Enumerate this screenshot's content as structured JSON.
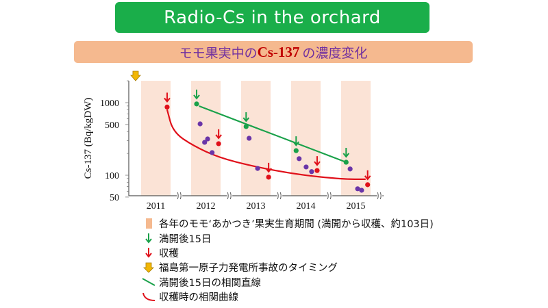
{
  "header": {
    "title": "Radio-Cs in the orchard",
    "subtitle_pre": "モモ果実中の",
    "subtitle_cs": "Cs-137",
    "subtitle_post": " の濃度変化"
  },
  "colors": {
    "title_bg": "#1aae4a",
    "subtitle_bg": "#f5b98f",
    "band": "#fbe3d6",
    "green": "#1aa14a",
    "red": "#e0101a",
    "purple": "#6a35a8",
    "accident": "#f2b705"
  },
  "chart_data": {
    "type": "scatter",
    "ylabel": "Cs-137 (Bq/kgDW)",
    "yscale": "log",
    "ylim": [
      50,
      2000
    ],
    "yticks": [
      {
        "v": 1000,
        "label": "1000"
      },
      {
        "v": 500,
        "label": "500"
      },
      {
        "v": 100,
        "label": "100"
      },
      {
        "v": 50,
        "label": "50"
      }
    ],
    "xlim": [
      2010.75,
      2015.85
    ],
    "years": [
      "2011",
      "2012",
      "2013",
      "2014",
      "2015"
    ],
    "season_length_years": 0.59,
    "accident_t": 2010.89,
    "series": [
      {
        "name": "15 days after full bloom",
        "color": "green",
        "points": [
          [
            2012.11,
            960
          ],
          [
            2013.1,
            468
          ],
          [
            2014.1,
            218
          ],
          [
            2015.1,
            151
          ]
        ],
        "arrows": true
      },
      {
        "name": "growth period",
        "color": "purple",
        "points": [
          [
            2012.18,
            510
          ],
          [
            2012.27,
            284
          ],
          [
            2012.33,
            316
          ],
          [
            2012.42,
            205
          ],
          [
            2013.16,
            323
          ],
          [
            2013.33,
            124
          ],
          [
            2014.16,
            169
          ],
          [
            2014.3,
            130
          ],
          [
            2014.41,
            112
          ],
          [
            2015.18,
            122
          ],
          [
            2015.33,
            65
          ],
          [
            2015.41,
            62
          ]
        ],
        "arrows": false
      },
      {
        "name": "harvest",
        "color": "red",
        "points": [
          [
            2011.52,
            870
          ],
          [
            2012.55,
            272
          ],
          [
            2013.55,
            94
          ],
          [
            2014.52,
            116
          ],
          [
            2015.53,
            74
          ]
        ],
        "arrows": true
      }
    ],
    "fits": [
      {
        "name": "15日後 linear fit",
        "color": "green",
        "points": [
          [
            2012.16,
            897
          ],
          [
            2015.1,
            151
          ]
        ]
      },
      {
        "name": "harvest curve fit",
        "color": "red",
        "points": [
          [
            2011.52,
            800
          ],
          [
            2011.64,
            393
          ],
          [
            2012.04,
            255
          ],
          [
            2012.55,
            176
          ],
          [
            2013.23,
            133
          ],
          [
            2014.12,
            102
          ],
          [
            2015.05,
            88
          ],
          [
            2015.49,
            88
          ]
        ]
      }
    ]
  },
  "legend": [
    {
      "icon": "band-swatch-icon",
      "label": "各年のモモ‘あかつき’果実生育期間 (満開から収穫、約103日)"
    },
    {
      "icon": "green-arrow-icon",
      "label": "満開後15日"
    },
    {
      "icon": "red-arrow-icon",
      "label": "収穫"
    },
    {
      "icon": "accident-arrow-icon",
      "label": "福島第一原子力発電所事故のタイミング"
    },
    {
      "icon": "green-line-icon",
      "label": "満開後15日の相関直線"
    },
    {
      "icon": "red-curve-icon",
      "label": "収穫時の相関曲線"
    }
  ]
}
